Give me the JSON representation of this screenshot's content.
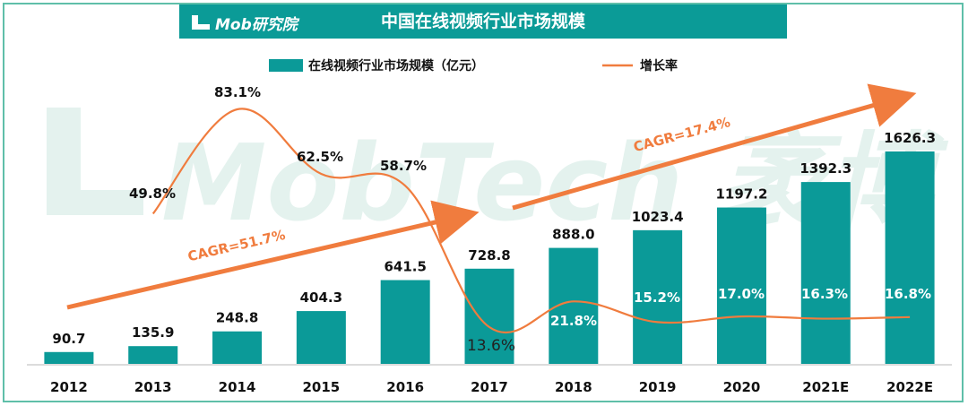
{
  "header": {
    "logo_text": "Mob研究院",
    "title": "中国在线视频行业市场规模",
    "watermark": "MobTech 袤博"
  },
  "colors": {
    "bar": "#0b9a98",
    "line": "#f07c3e",
    "frame": "#5fbfa9",
    "axis": "#d0d0d0",
    "watermark": "#e4f2ee"
  },
  "chart_data": {
    "type": "bar",
    "categories": [
      "2012",
      "2013",
      "2014",
      "2015",
      "2016",
      "2017",
      "2018",
      "2019",
      "2020",
      "2021E",
      "2022E"
    ],
    "series": [
      {
        "name": "在线视频行业市场规模（亿元）",
        "type": "bar",
        "values": [
          90.7,
          135.9,
          248.8,
          404.3,
          641.5,
          728.8,
          888.0,
          1023.4,
          1197.2,
          1392.3,
          1626.3
        ],
        "labels": [
          "90.7",
          "135.9",
          "248.8",
          "404.3",
          "641.5",
          "728.8",
          "888.0",
          "1023.4",
          "1197.2",
          "1392.3",
          "1626.3"
        ]
      },
      {
        "name": "增长率",
        "type": "line",
        "values": [
          null,
          49.8,
          83.1,
          62.5,
          58.7,
          13.6,
          21.8,
          15.2,
          17.0,
          16.3,
          16.8
        ],
        "labels": [
          null,
          "49.8%",
          "83.1%",
          "62.5%",
          "58.7%",
          "13.6%",
          "21.8%",
          "15.2%",
          "17.0%",
          "16.3%",
          "16.8%"
        ]
      }
    ],
    "annotations": [
      {
        "text": "CAGR=51.7%",
        "from": "2012",
        "to": "2017"
      },
      {
        "text": "CAGR=17.4%",
        "from": "2017",
        "to": "2022E"
      }
    ],
    "legend_position": "top-center",
    "grid": false
  }
}
